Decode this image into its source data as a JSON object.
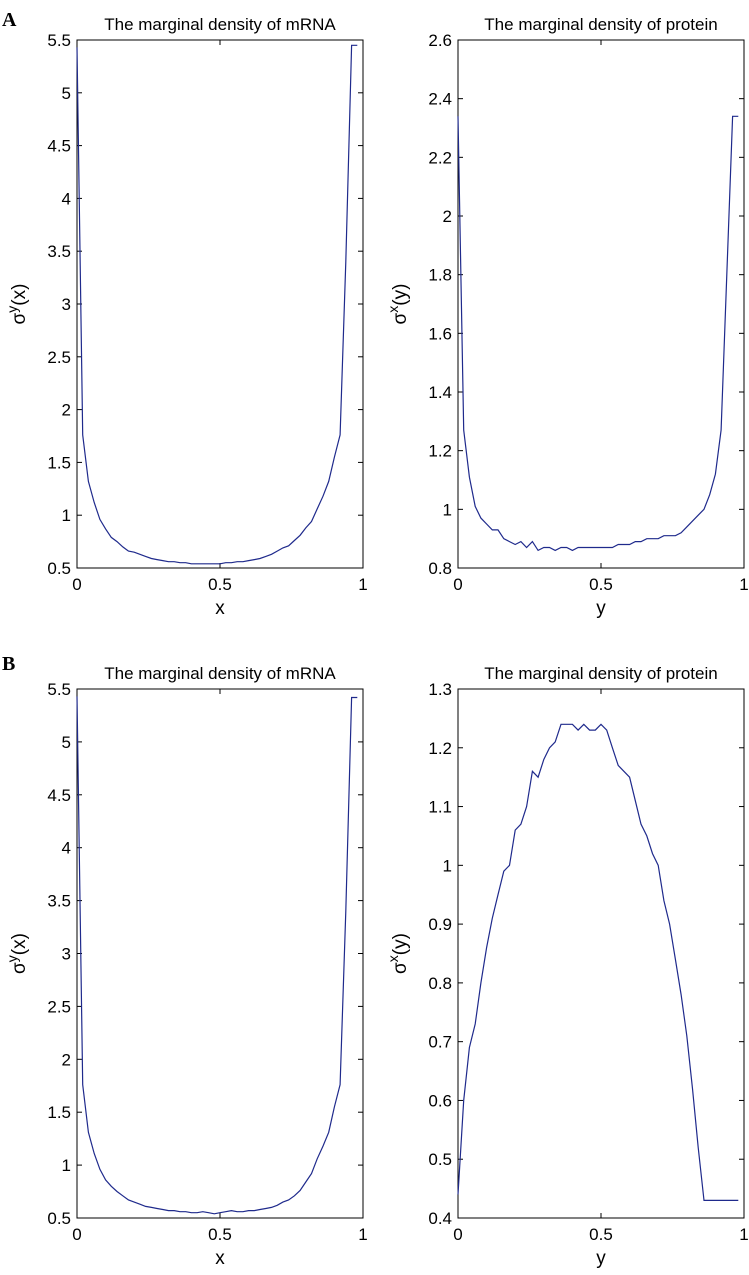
{
  "panel_labels": [
    "A",
    "B"
  ],
  "chart_data": [
    {
      "type": "line",
      "panel": "A",
      "title": "The marginal density of mRNA",
      "xlabel": "x",
      "ylabel_base": "σ",
      "ylabel_sup": "y",
      "ylabel_arg": "(x)",
      "xlim": [
        0,
        1
      ],
      "ylim": [
        0.5,
        5.5
      ],
      "xticks": [
        "0",
        "0.5",
        "1"
      ],
      "yticks": [
        "0.5",
        "1",
        "1.5",
        "2",
        "2.5",
        "3",
        "3.5",
        "4",
        "4.5",
        "5",
        "5.5"
      ],
      "series": [
        {
          "x": [
            0.0,
            0.02,
            0.04,
            0.06,
            0.08,
            0.1,
            0.12,
            0.14,
            0.16,
            0.18,
            0.2,
            0.22,
            0.24,
            0.26,
            0.28,
            0.3,
            0.32,
            0.34,
            0.36,
            0.38,
            0.4,
            0.42,
            0.44,
            0.46,
            0.48,
            0.5,
            0.52,
            0.54,
            0.56,
            0.58,
            0.6,
            0.62,
            0.64,
            0.66,
            0.68,
            0.7,
            0.72,
            0.74,
            0.76,
            0.78,
            0.8,
            0.82,
            0.84,
            0.86,
            0.88,
            0.9,
            0.92,
            0.94,
            0.96,
            0.98
          ],
          "y": [
            5.43,
            1.76,
            1.32,
            1.12,
            0.96,
            0.87,
            0.79,
            0.75,
            0.7,
            0.66,
            0.65,
            0.63,
            0.61,
            0.59,
            0.58,
            0.57,
            0.56,
            0.56,
            0.55,
            0.55,
            0.54,
            0.54,
            0.54,
            0.54,
            0.54,
            0.54,
            0.55,
            0.55,
            0.56,
            0.56,
            0.57,
            0.58,
            0.59,
            0.61,
            0.63,
            0.66,
            0.69,
            0.71,
            0.76,
            0.81,
            0.88,
            0.94,
            1.06,
            1.18,
            1.32,
            1.55,
            1.76,
            3.4,
            5.45,
            5.45
          ]
        }
      ]
    },
    {
      "type": "line",
      "panel": "A",
      "title": "The marginal density of protein",
      "xlabel": "y",
      "ylabel_base": "σ",
      "ylabel_sup": "x",
      "ylabel_arg": "(y)",
      "xlim": [
        0,
        1
      ],
      "ylim": [
        0.8,
        2.6
      ],
      "xticks": [
        "0",
        "0.5",
        "1"
      ],
      "yticks": [
        "0.8",
        "1",
        "1.2",
        "1.4",
        "1.6",
        "1.8",
        "2",
        "2.2",
        "2.4",
        "2.6"
      ],
      "series": [
        {
          "x": [
            0.0,
            0.02,
            0.04,
            0.06,
            0.08,
            0.1,
            0.12,
            0.14,
            0.16,
            0.18,
            0.2,
            0.22,
            0.24,
            0.26,
            0.28,
            0.3,
            0.32,
            0.34,
            0.36,
            0.38,
            0.4,
            0.42,
            0.44,
            0.46,
            0.48,
            0.5,
            0.52,
            0.54,
            0.56,
            0.58,
            0.6,
            0.62,
            0.64,
            0.66,
            0.68,
            0.7,
            0.72,
            0.74,
            0.76,
            0.78,
            0.8,
            0.82,
            0.84,
            0.86,
            0.88,
            0.9,
            0.92,
            0.94,
            0.96,
            0.98
          ],
          "y": [
            2.34,
            1.27,
            1.11,
            1.01,
            0.97,
            0.95,
            0.93,
            0.93,
            0.9,
            0.89,
            0.88,
            0.89,
            0.87,
            0.89,
            0.86,
            0.87,
            0.87,
            0.86,
            0.87,
            0.87,
            0.86,
            0.87,
            0.87,
            0.87,
            0.87,
            0.87,
            0.87,
            0.87,
            0.88,
            0.88,
            0.88,
            0.89,
            0.89,
            0.9,
            0.9,
            0.9,
            0.91,
            0.91,
            0.91,
            0.92,
            0.94,
            0.96,
            0.98,
            1.0,
            1.05,
            1.12,
            1.27,
            1.8,
            2.34,
            2.34
          ]
        }
      ]
    },
    {
      "type": "line",
      "panel": "B",
      "title": "The marginal density of mRNA",
      "xlabel": "x",
      "ylabel_base": "σ",
      "ylabel_sup": "y",
      "ylabel_arg": "(x)",
      "xlim": [
        0,
        1
      ],
      "ylim": [
        0.5,
        5.5
      ],
      "xticks": [
        "0",
        "0.5",
        "1"
      ],
      "yticks": [
        "0.5",
        "1",
        "1.5",
        "2",
        "2.5",
        "3",
        "3.5",
        "4",
        "4.5",
        "5",
        "5.5"
      ],
      "series": [
        {
          "x": [
            0.0,
            0.02,
            0.04,
            0.06,
            0.08,
            0.1,
            0.12,
            0.14,
            0.16,
            0.18,
            0.2,
            0.22,
            0.24,
            0.26,
            0.28,
            0.3,
            0.32,
            0.34,
            0.36,
            0.38,
            0.4,
            0.42,
            0.44,
            0.46,
            0.48,
            0.5,
            0.52,
            0.54,
            0.56,
            0.58,
            0.6,
            0.62,
            0.64,
            0.66,
            0.68,
            0.7,
            0.72,
            0.74,
            0.76,
            0.78,
            0.8,
            0.82,
            0.84,
            0.86,
            0.88,
            0.9,
            0.92,
            0.94,
            0.96,
            0.98
          ],
          "y": [
            5.43,
            1.76,
            1.31,
            1.11,
            0.96,
            0.86,
            0.8,
            0.75,
            0.71,
            0.67,
            0.65,
            0.63,
            0.61,
            0.6,
            0.59,
            0.58,
            0.57,
            0.57,
            0.56,
            0.56,
            0.55,
            0.55,
            0.56,
            0.55,
            0.54,
            0.55,
            0.56,
            0.57,
            0.56,
            0.56,
            0.57,
            0.57,
            0.58,
            0.59,
            0.6,
            0.62,
            0.65,
            0.67,
            0.71,
            0.76,
            0.84,
            0.92,
            1.06,
            1.18,
            1.31,
            1.55,
            1.76,
            3.4,
            5.42,
            5.42
          ]
        }
      ]
    },
    {
      "type": "line",
      "panel": "B",
      "title": "The marginal density of protein",
      "xlabel": "y",
      "ylabel_base": "σ",
      "ylabel_sup": "x",
      "ylabel_arg": "(y)",
      "xlim": [
        0,
        1
      ],
      "ylim": [
        0.4,
        1.3
      ],
      "xticks": [
        "0",
        "0.5",
        "1"
      ],
      "yticks": [
        "0.4",
        "0.5",
        "0.6",
        "0.7",
        "0.8",
        "0.9",
        "1",
        "1.1",
        "1.2",
        "1.3"
      ],
      "series": [
        {
          "x": [
            0.0,
            0.02,
            0.04,
            0.06,
            0.08,
            0.1,
            0.12,
            0.14,
            0.16,
            0.18,
            0.2,
            0.22,
            0.24,
            0.26,
            0.28,
            0.3,
            0.32,
            0.34,
            0.36,
            0.38,
            0.4,
            0.42,
            0.44,
            0.46,
            0.48,
            0.5,
            0.52,
            0.54,
            0.56,
            0.58,
            0.6,
            0.62,
            0.64,
            0.66,
            0.68,
            0.7,
            0.72,
            0.74,
            0.76,
            0.78,
            0.8,
            0.82,
            0.84,
            0.86,
            0.88,
            0.9,
            0.92,
            0.94,
            0.96,
            0.98
          ],
          "y": [
            0.44,
            0.6,
            0.69,
            0.73,
            0.8,
            0.86,
            0.91,
            0.95,
            0.99,
            1.0,
            1.06,
            1.07,
            1.1,
            1.16,
            1.15,
            1.18,
            1.2,
            1.21,
            1.24,
            1.24,
            1.24,
            1.23,
            1.24,
            1.23,
            1.23,
            1.24,
            1.23,
            1.2,
            1.17,
            1.16,
            1.15,
            1.11,
            1.07,
            1.05,
            1.02,
            1.0,
            0.94,
            0.9,
            0.84,
            0.78,
            0.71,
            0.62,
            0.52,
            0.43,
            0.43,
            0.43,
            0.43,
            0.43,
            0.43,
            0.43
          ]
        }
      ]
    }
  ]
}
